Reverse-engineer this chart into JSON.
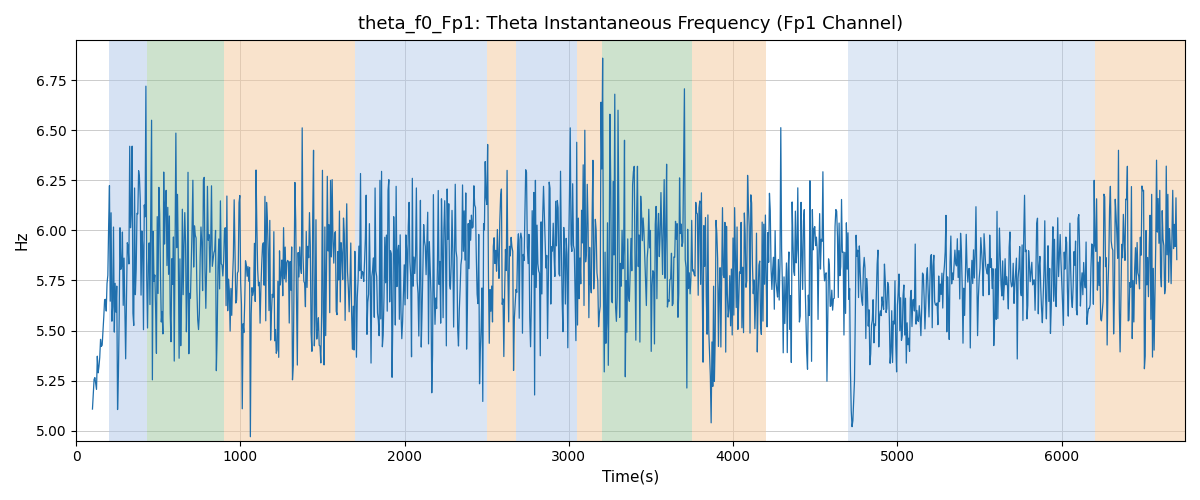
{
  "title": "theta_f0_Fp1: Theta Instantaneous Frequency (Fp1 Channel)",
  "xlabel": "Time(s)",
  "ylabel": "Hz",
  "xlim": [
    0,
    6750
  ],
  "ylim": [
    4.95,
    6.95
  ],
  "line_color": "#1f6fad",
  "line_width": 0.9,
  "background_color": "#ffffff",
  "grid_color": "#cccccc",
  "bg_bands": [
    {
      "xmin": 200,
      "xmax": 430,
      "color": "#aec6e8",
      "alpha": 0.5
    },
    {
      "xmin": 430,
      "xmax": 900,
      "color": "#90c090",
      "alpha": 0.45
    },
    {
      "xmin": 900,
      "xmax": 1700,
      "color": "#f5c89a",
      "alpha": 0.5
    },
    {
      "xmin": 1700,
      "xmax": 2500,
      "color": "#aec6e8",
      "alpha": 0.45
    },
    {
      "xmin": 2500,
      "xmax": 2680,
      "color": "#f5c89a",
      "alpha": 0.5
    },
    {
      "xmin": 2680,
      "xmax": 3050,
      "color": "#aec6e8",
      "alpha": 0.5
    },
    {
      "xmin": 3050,
      "xmax": 3200,
      "color": "#f5c89a",
      "alpha": 0.5
    },
    {
      "xmin": 3200,
      "xmax": 3200,
      "color": "#aec6e8",
      "alpha": 0.5
    },
    {
      "xmin": 3200,
      "xmax": 3750,
      "color": "#90c090",
      "alpha": 0.45
    },
    {
      "xmin": 3750,
      "xmax": 4200,
      "color": "#f5c89a",
      "alpha": 0.5
    },
    {
      "xmin": 4700,
      "xmax": 6200,
      "color": "#aec6e8",
      "alpha": 0.4
    },
    {
      "xmin": 6200,
      "xmax": 6750,
      "color": "#f5c89a",
      "alpha": 0.5
    }
  ],
  "seed": 123,
  "n_points": 1340,
  "x_start": 100,
  "x_end": 6700,
  "mean_freq": 5.82,
  "std_freq": 0.25
}
